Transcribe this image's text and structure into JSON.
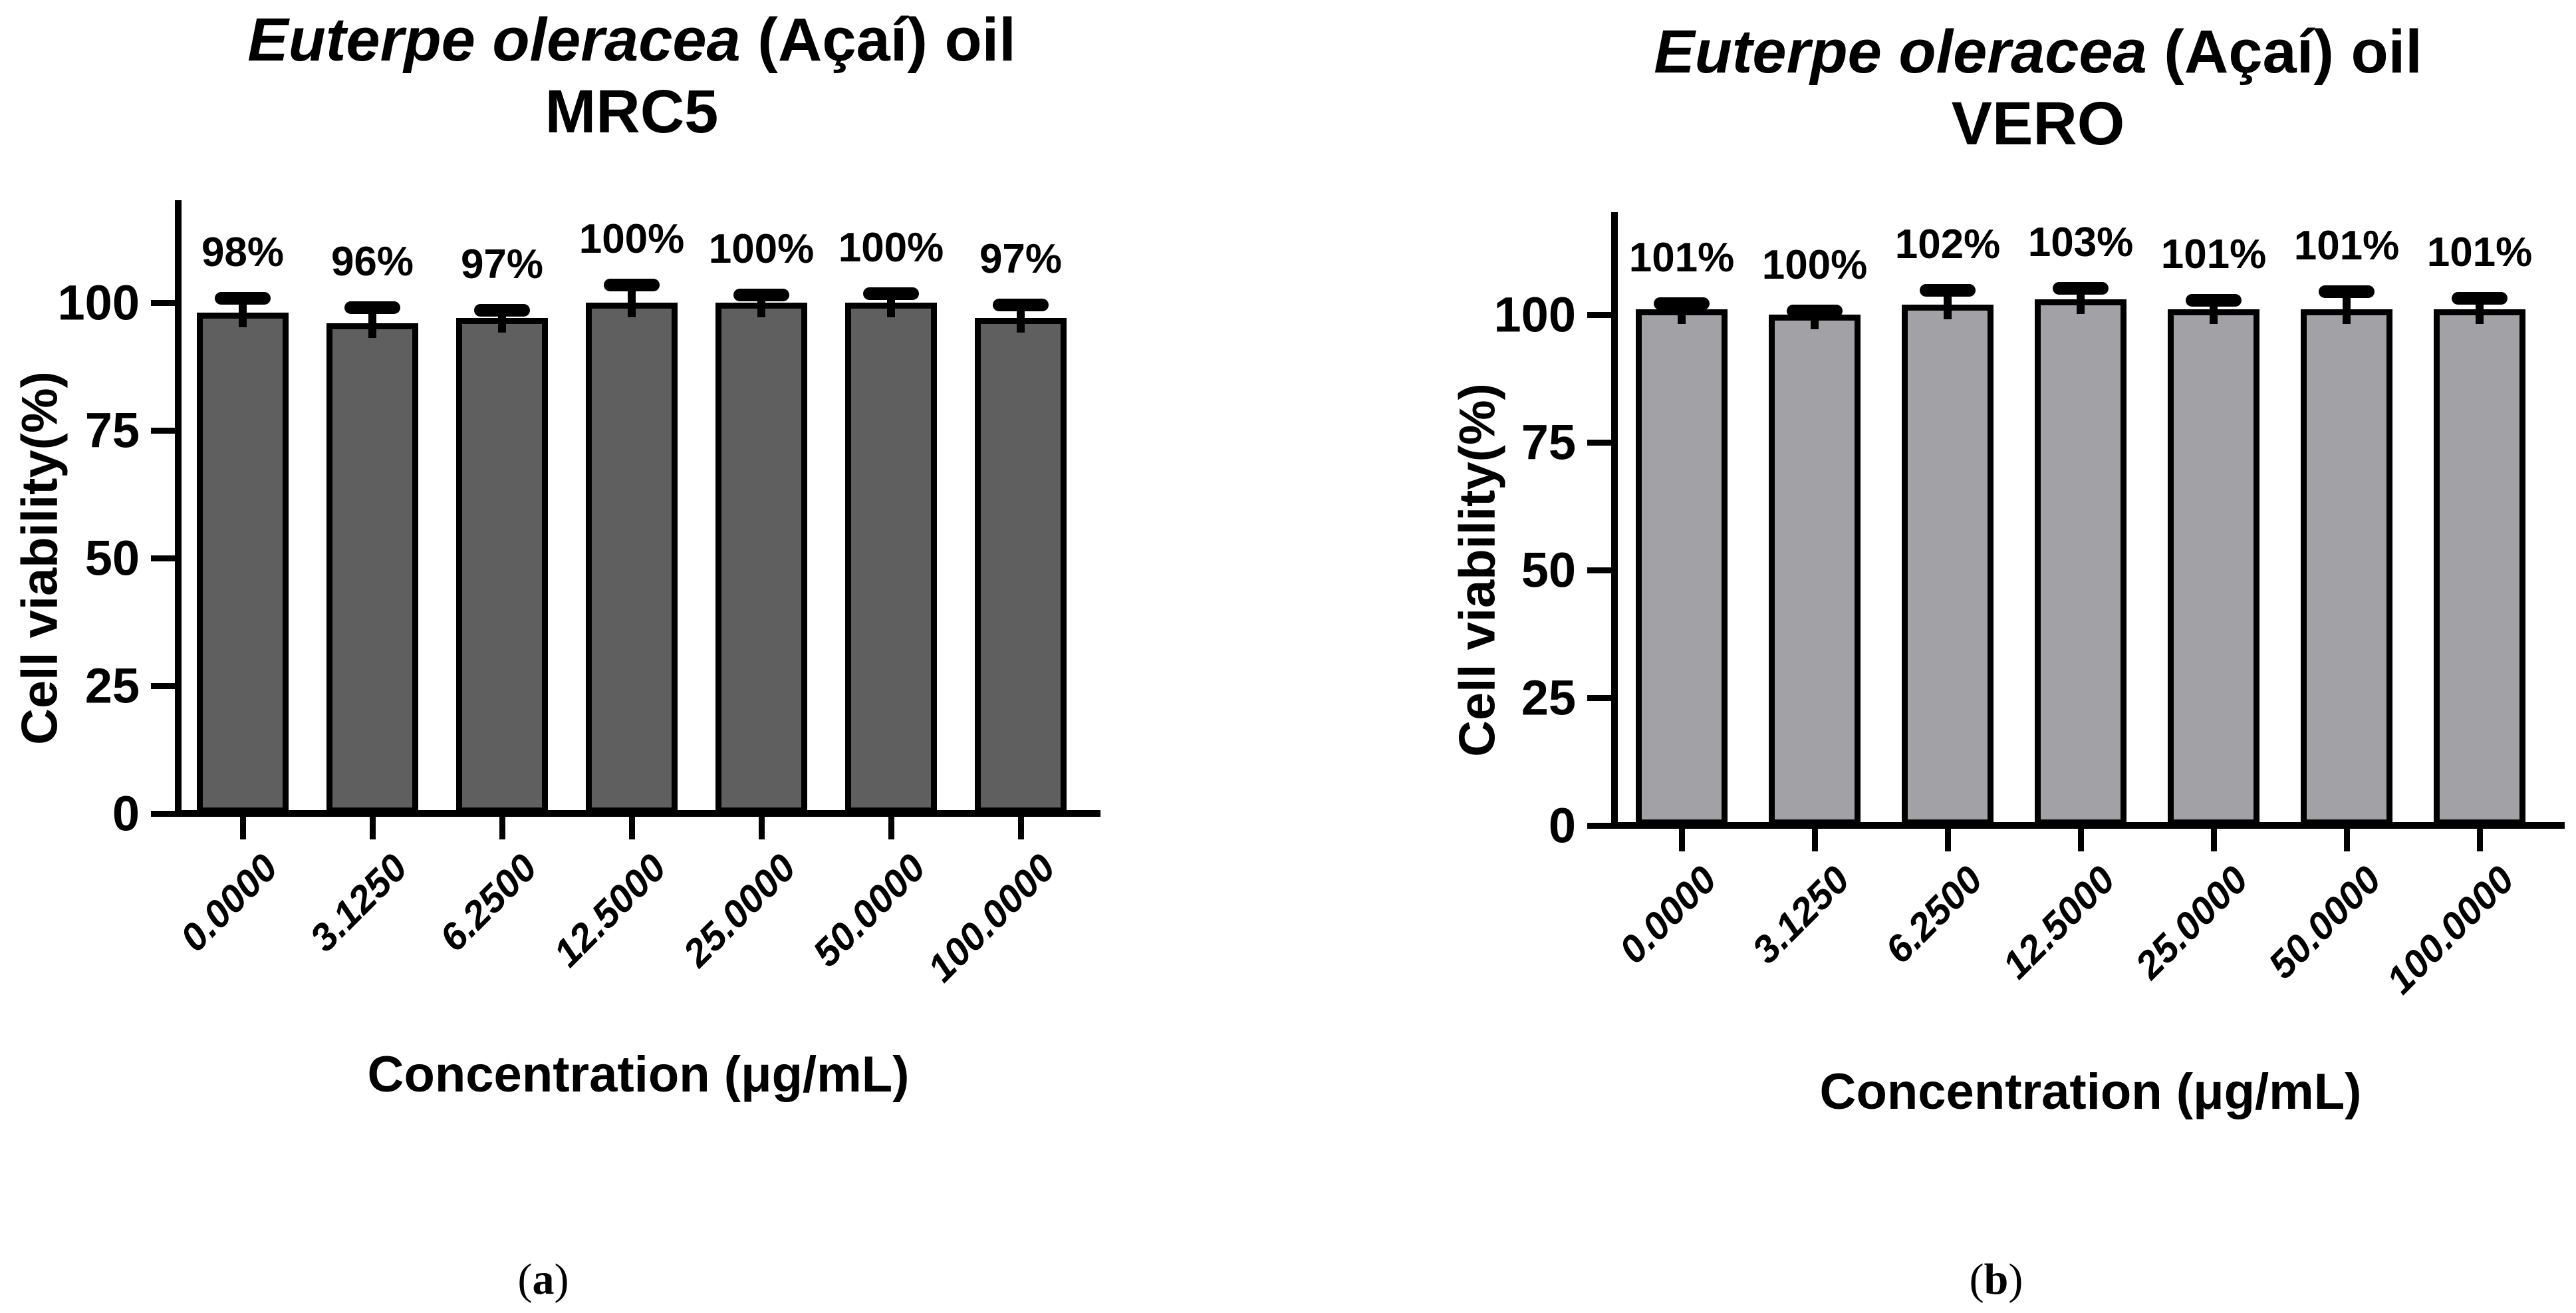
{
  "chart_data": [
    {
      "type": "bar",
      "panel": "a",
      "title_italic": "Euterpe oleracea",
      "title_rest": " (Açaí) oil",
      "subtitle": "MRC5",
      "ylabel": "Cell viability(%)",
      "xlabel": "Concentration (μg/mL)",
      "categories": [
        "0.0000",
        "3.1250",
        "6.2500",
        "12.5000",
        "25.0000",
        "50.0000",
        "100.0000"
      ],
      "values": [
        98,
        96,
        97,
        100,
        100,
        100,
        97
      ],
      "errors": [
        2.8,
        3.0,
        1.5,
        3.5,
        1.5,
        1.8,
        2.5
      ],
      "bar_labels": [
        "98%",
        "96%",
        "97%",
        "100%",
        "100%",
        "100%",
        "97%"
      ],
      "yticks": [
        {
          "v": 0,
          "label": "0"
        },
        {
          "v": 25,
          "label": "25"
        },
        {
          "v": 50,
          "label": "50"
        },
        {
          "v": 75,
          "label": "75"
        },
        {
          "v": 100,
          "label": "100"
        }
      ],
      "ylim": [
        0,
        120
      ],
      "grid": false,
      "legend": "none",
      "bar_color": "#5f5f5f",
      "axis_color": "#000000",
      "caption": {
        "open": "(",
        "letter": "a",
        "close": ")"
      }
    },
    {
      "type": "bar",
      "panel": "b",
      "title_italic": "Euterpe oleracea",
      "title_rest": " (Açaí) oil",
      "subtitle": "VERO",
      "ylabel": "Cell viability(%)",
      "xlabel": "Concentration (μg/mL)",
      "categories": [
        "0.0000",
        "3.1250",
        "6.2500",
        "12.5000",
        "25.0000",
        "50.0000",
        "100.0000"
      ],
      "values": [
        101,
        100,
        102,
        103,
        101,
        101,
        101
      ],
      "errors": [
        1.2,
        0.7,
        2.8,
        2.2,
        1.8,
        3.5,
        2.2
      ],
      "bar_labels": [
        "101%",
        "100%",
        "102%",
        "103%",
        "101%",
        "101%",
        "101%"
      ],
      "yticks": [
        {
          "v": 0,
          "label": "0"
        },
        {
          "v": 25,
          "label": "25"
        },
        {
          "v": 50,
          "label": "50"
        },
        {
          "v": 75,
          "label": "75"
        },
        {
          "v": 100,
          "label": "100"
        }
      ],
      "ylim": [
        0,
        120
      ],
      "grid": false,
      "legend": "none",
      "bar_color": "#a2a2a6",
      "axis_color": "#000000",
      "caption": {
        "open": "(",
        "letter": "b",
        "close": ")"
      }
    }
  ]
}
